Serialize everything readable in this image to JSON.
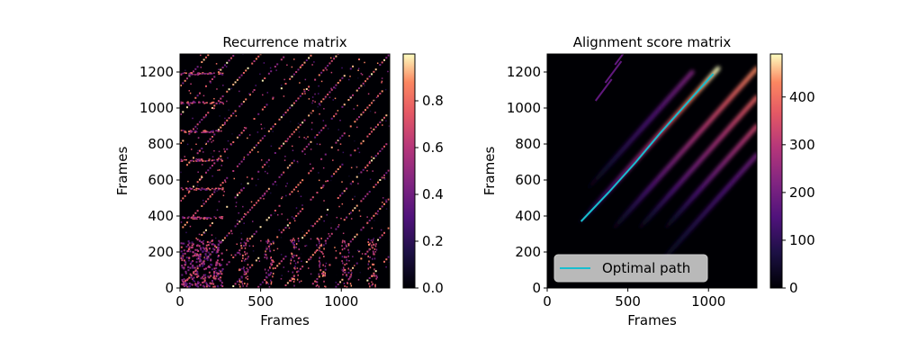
{
  "chart_data": [
    {
      "type": "heatmap",
      "title": "Recurrence matrix",
      "xlabel": "Frames",
      "ylabel": "Frames",
      "xlim": [
        0,
        1300
      ],
      "ylim": [
        0,
        1300
      ],
      "xticks": [
        0,
        500,
        1000
      ],
      "yticks": [
        0,
        200,
        400,
        600,
        800,
        1000,
        1200
      ],
      "colormap": "magma",
      "colorbar": {
        "range": [
          0,
          1
        ],
        "ticks": [
          0.0,
          0.2,
          0.4,
          0.6,
          0.8
        ]
      },
      "diagonal_offsets_frames": [
        0,
        160,
        320,
        480,
        640,
        800,
        960,
        1120
      ],
      "block_regions": [
        {
          "x": [
            0,
            260
          ],
          "y": [
            0,
            260
          ],
          "level": 0.5
        }
      ]
    },
    {
      "type": "heatmap",
      "title": "Alignment score matrix",
      "xlabel": "Frames",
      "ylabel": "Frames",
      "xlim": [
        0,
        1300
      ],
      "ylim": [
        0,
        1300
      ],
      "xticks": [
        0,
        500,
        1000
      ],
      "yticks": [
        0,
        200,
        400,
        600,
        800,
        1000,
        1200
      ],
      "colormap": "magma",
      "colorbar": {
        "range": [
          0,
          490
        ],
        "ticks": [
          0,
          100,
          200,
          300,
          400
        ]
      },
      "legend": {
        "position": "lower-left",
        "entries": [
          "Optimal path"
        ]
      },
      "optimal_path": {
        "name": "Optimal path",
        "color": "#17becf",
        "x": [
          210,
          380,
          550,
          700,
          860,
          1030
        ],
        "y": [
          370,
          530,
          700,
          860,
          1020,
          1190
        ]
      },
      "bands": [
        {
          "x_start": 210,
          "x_end": 1060,
          "offset": 160,
          "peak": 490
        },
        {
          "x_start": 420,
          "x_end": 1300,
          "offset": -80,
          "peak": 430
        },
        {
          "x_start": 580,
          "x_end": 1300,
          "offset": -240,
          "peak": 380
        },
        {
          "x_start": 740,
          "x_end": 1300,
          "offset": -400,
          "peak": 330
        },
        {
          "x_start": 260,
          "x_end": 900,
          "offset": 300,
          "peak": 220
        },
        {
          "x_start": 700,
          "x_end": 1300,
          "offset": -560,
          "peak": 200
        }
      ]
    }
  ],
  "labels": {
    "left_title": "Recurrence matrix",
    "right_title": "Alignment score matrix",
    "xlabel": "Frames",
    "ylabel": "Frames",
    "legend_label": "Optimal path"
  },
  "colors": {
    "background": "#000000",
    "path": "#17becf"
  }
}
